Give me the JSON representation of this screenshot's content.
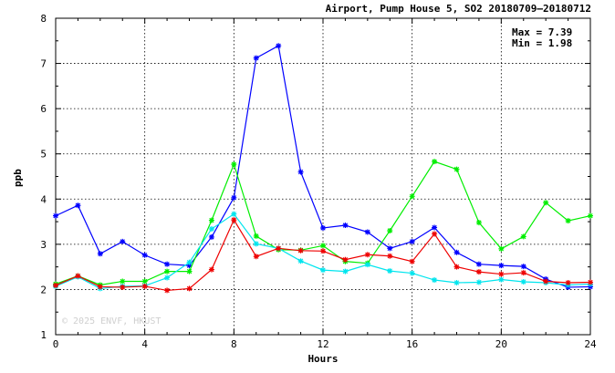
{
  "chart_data": {
    "type": "line",
    "title": "Airport, Pump House 5, SO2 20180709–20180712",
    "xlabel": "Hours",
    "ylabel": "ppb",
    "xlim": [
      0,
      24
    ],
    "ylim": [
      1,
      8
    ],
    "xticks": [
      0,
      4,
      8,
      12,
      16,
      20,
      24
    ],
    "yticks": [
      1,
      2,
      3,
      4,
      5,
      6,
      7,
      8
    ],
    "grid": true,
    "stats": {
      "max": "Max = 7.39",
      "min": "Min = 1.98"
    },
    "watermark": "© 2025  ENVF, HKUST",
    "x": [
      0,
      1,
      2,
      3,
      4,
      5,
      6,
      7,
      8,
      9,
      10,
      11,
      12,
      13,
      14,
      15,
      16,
      17,
      18,
      19,
      20,
      21,
      22,
      23,
      24
    ],
    "series": [
      {
        "color": "#0000ff",
        "values": [
          3.63,
          3.86,
          2.79,
          3.06,
          2.76,
          2.56,
          2.53,
          3.16,
          4.03,
          7.12,
          7.39,
          4.6,
          3.36,
          3.42,
          3.27,
          2.91,
          3.06,
          3.37,
          2.82,
          2.56,
          2.53,
          2.51,
          2.23,
          2.05,
          2.06
        ]
      },
      {
        "color": "#00ee00",
        "values": [
          2.12,
          2.3,
          2.1,
          2.18,
          2.18,
          2.4,
          2.4,
          3.53,
          4.77,
          3.18,
          2.88,
          2.87,
          2.97,
          2.62,
          2.58,
          3.3,
          4.06,
          4.83,
          4.66,
          3.48,
          2.9,
          3.17,
          3.92,
          3.52,
          3.63
        ]
      },
      {
        "color": "#00e5ee",
        "values": [
          2.07,
          2.28,
          2.02,
          2.07,
          2.08,
          2.26,
          2.6,
          3.34,
          3.67,
          3.01,
          2.91,
          2.63,
          2.43,
          2.4,
          2.55,
          2.41,
          2.36,
          2.21,
          2.15,
          2.16,
          2.22,
          2.17,
          2.15,
          2.1,
          2.12
        ]
      },
      {
        "color": "#ee0000",
        "values": [
          2.09,
          2.3,
          2.06,
          2.05,
          2.07,
          1.98,
          2.02,
          2.44,
          3.54,
          2.73,
          2.91,
          2.86,
          2.85,
          2.66,
          2.77,
          2.74,
          2.62,
          3.23,
          2.5,
          2.39,
          2.34,
          2.37,
          2.18,
          2.15,
          2.16
        ]
      }
    ]
  }
}
